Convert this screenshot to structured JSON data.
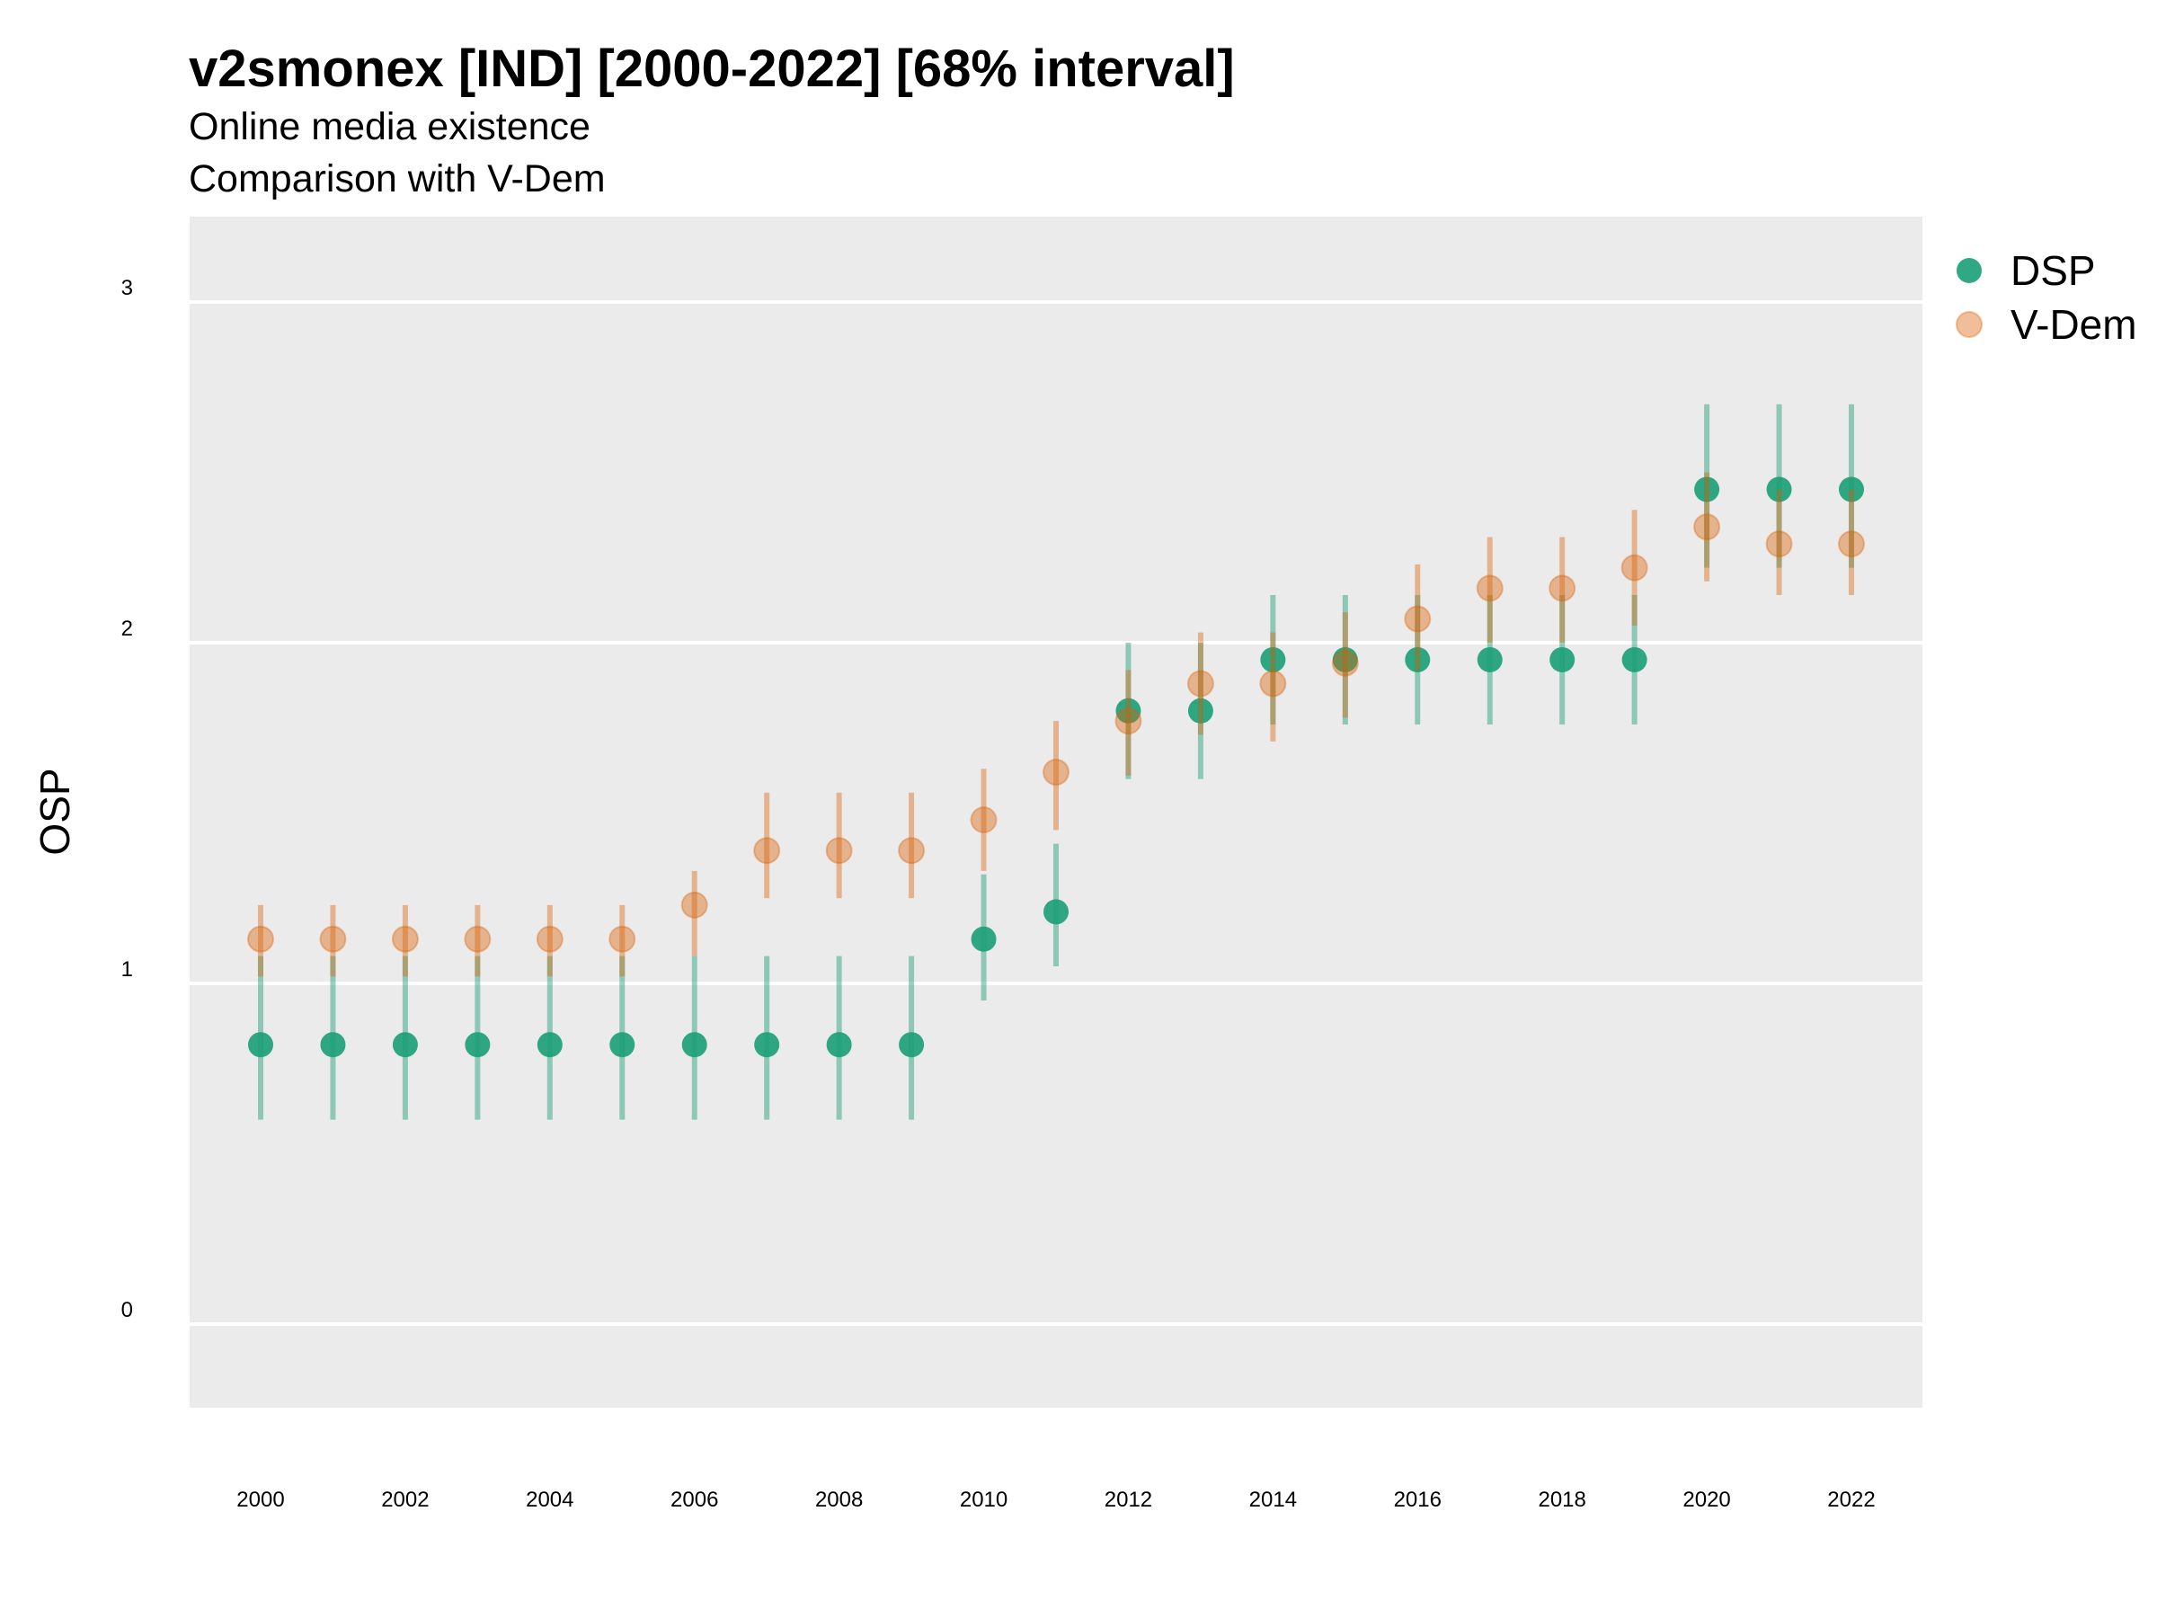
{
  "chart_data": {
    "type": "scatter",
    "title": "v2smonex [IND] [2000-2022] [68% interval]",
    "subtitle_lines": [
      "Online media existence",
      "Comparison with V-Dem"
    ],
    "xlabel": "",
    "ylabel": "OSP",
    "x": [
      2000,
      2001,
      2002,
      2003,
      2004,
      2005,
      2006,
      2007,
      2008,
      2009,
      2010,
      2011,
      2012,
      2013,
      2014,
      2015,
      2016,
      2017,
      2018,
      2019,
      2020,
      2021,
      2022
    ],
    "x_tick_labels": [
      "2000",
      "2002",
      "2004",
      "2006",
      "2008",
      "2010",
      "2012",
      "2014",
      "2016",
      "2018",
      "2020",
      "2022"
    ],
    "y_tick_labels": [
      "0",
      "1",
      "2",
      "3"
    ],
    "ylim": [
      -0.25,
      3.25
    ],
    "grid": true,
    "legend_position": "right",
    "series": [
      {
        "name": "DSP",
        "color": "#1b9e77",
        "values": [
          0.82,
          0.82,
          0.82,
          0.82,
          0.82,
          0.82,
          0.82,
          0.82,
          0.82,
          0.82,
          1.13,
          1.21,
          1.8,
          1.8,
          1.95,
          1.95,
          1.95,
          1.95,
          1.95,
          1.95,
          2.45,
          2.45,
          2.45
        ],
        "lower": [
          0.6,
          0.6,
          0.6,
          0.6,
          0.6,
          0.6,
          0.6,
          0.6,
          0.6,
          0.6,
          0.95,
          1.05,
          1.6,
          1.6,
          1.76,
          1.76,
          1.76,
          1.76,
          1.76,
          1.76,
          2.22,
          2.22,
          2.22
        ],
        "upper": [
          1.08,
          1.08,
          1.08,
          1.08,
          1.08,
          1.08,
          1.08,
          1.08,
          1.08,
          1.08,
          1.32,
          1.41,
          2.0,
          2.0,
          2.14,
          2.14,
          2.14,
          2.14,
          2.14,
          2.14,
          2.7,
          2.7,
          2.7
        ]
      },
      {
        "name": "V-Dem",
        "color": "#d95f02",
        "values": [
          1.13,
          1.13,
          1.13,
          1.13,
          1.13,
          1.13,
          1.23,
          1.39,
          1.39,
          1.39,
          1.48,
          1.62,
          1.77,
          1.88,
          1.88,
          1.94,
          2.07,
          2.16,
          2.16,
          2.22,
          2.34,
          2.29,
          2.29
        ],
        "lower": [
          1.02,
          1.02,
          1.02,
          1.02,
          1.02,
          1.02,
          1.08,
          1.25,
          1.25,
          1.25,
          1.33,
          1.45,
          1.61,
          1.73,
          1.71,
          1.78,
          1.92,
          2.0,
          2.0,
          2.05,
          2.18,
          2.14,
          2.14
        ],
        "upper": [
          1.23,
          1.23,
          1.23,
          1.23,
          1.23,
          1.23,
          1.33,
          1.56,
          1.56,
          1.56,
          1.63,
          1.77,
          1.92,
          2.03,
          2.03,
          2.09,
          2.23,
          2.31,
          2.31,
          2.39,
          2.5,
          2.45,
          2.45
        ]
      }
    ]
  }
}
